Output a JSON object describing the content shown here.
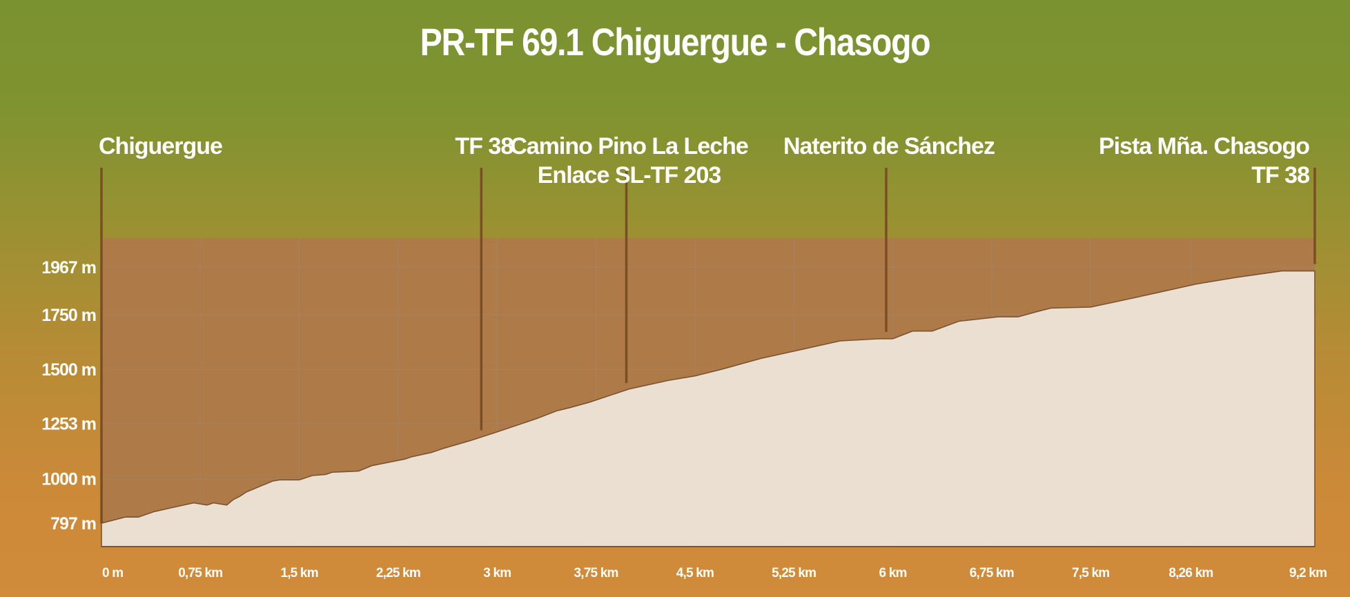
{
  "chart_data": {
    "type": "area",
    "title": "PR-TF 69.1 Chiguergue - Chasogo",
    "xlabel": "",
    "ylabel": "",
    "x_range_km": [
      0,
      9.2
    ],
    "y_range_m": [
      690,
      2100
    ],
    "grid": true,
    "legend": "none",
    "x_ticks": [
      {
        "value": 0,
        "label": "0 m"
      },
      {
        "value": 0.75,
        "label": "0,75 km"
      },
      {
        "value": 1.5,
        "label": "1,5 km"
      },
      {
        "value": 2.25,
        "label": "2,25 km"
      },
      {
        "value": 3,
        "label": "3 km"
      },
      {
        "value": 3.75,
        "label": "3,75 km"
      },
      {
        "value": 4.5,
        "label": "4,5 km"
      },
      {
        "value": 5.25,
        "label": "5,25 km"
      },
      {
        "value": 6,
        "label": "6 km"
      },
      {
        "value": 6.75,
        "label": "6,75 km"
      },
      {
        "value": 7.5,
        "label": "7,5 km"
      },
      {
        "value": 8.26,
        "label": "8,26 km"
      },
      {
        "value": 9.2,
        "label": "9,2 km"
      }
    ],
    "y_ticks": [
      {
        "value": 797,
        "label": "797 m"
      },
      {
        "value": 1000,
        "label": "1000 m"
      },
      {
        "value": 1253,
        "label": "1253 m"
      },
      {
        "value": 1500,
        "label": "1500 m"
      },
      {
        "value": 1750,
        "label": "1750 m"
      },
      {
        "value": 1967,
        "label": "1967 m"
      }
    ],
    "profile": {
      "x": [
        0,
        0.18,
        0.28,
        0.4,
        0.55,
        0.7,
        0.8,
        0.85,
        0.95,
        1.0,
        1.05,
        1.1,
        1.3,
        1.35,
        1.5,
        1.6,
        1.7,
        1.75,
        1.95,
        2.05,
        2.3,
        2.35,
        2.5,
        2.6,
        2.8,
        2.98,
        3.3,
        3.45,
        3.55,
        3.7,
        4.0,
        4.3,
        4.5,
        4.7,
        5.0,
        5.3,
        5.6,
        5.9,
        6.0,
        6.15,
        6.3,
        6.5,
        6.8,
        6.95,
        7.1,
        7.2,
        7.5,
        7.7,
        8.0,
        8.3,
        8.6,
        8.95,
        9.2
      ],
      "y": [
        797,
        825,
        825,
        850,
        870,
        890,
        880,
        890,
        880,
        905,
        920,
        940,
        990,
        995,
        995,
        1015,
        1020,
        1030,
        1035,
        1060,
        1090,
        1100,
        1120,
        1140,
        1175,
        1210,
        1275,
        1310,
        1325,
        1350,
        1410,
        1450,
        1470,
        1500,
        1550,
        1590,
        1630,
        1640,
        1640,
        1675,
        1675,
        1720,
        1740,
        1740,
        1765,
        1780,
        1785,
        1810,
        1850,
        1890,
        1920,
        1950,
        1950
      ]
    },
    "waypoints": [
      {
        "km": 0,
        "label_lines": [
          "Chiguergue"
        ],
        "align": "left"
      },
      {
        "km": 2.88,
        "label_lines": [
          "TF 38"
        ],
        "align": "center"
      },
      {
        "km": 3.98,
        "label_lines": [
          "Camino Pino La Leche",
          "Enlace SL-TF 203"
        ],
        "align": "center"
      },
      {
        "km": 5.95,
        "label_lines": [
          "Naterito de Sánchez"
        ],
        "align": "center"
      },
      {
        "km": 9.2,
        "label_lines": [
          "Pista Mña. Chasogo",
          "TF 38"
        ],
        "align": "right"
      }
    ],
    "colors": {
      "sky_panel": "#ae7b48",
      "terrain": "#efe6dc",
      "outline": "#7a5330",
      "marker": "#7a4e25",
      "grid": "#9a8d82",
      "text": "#ffffff"
    }
  }
}
